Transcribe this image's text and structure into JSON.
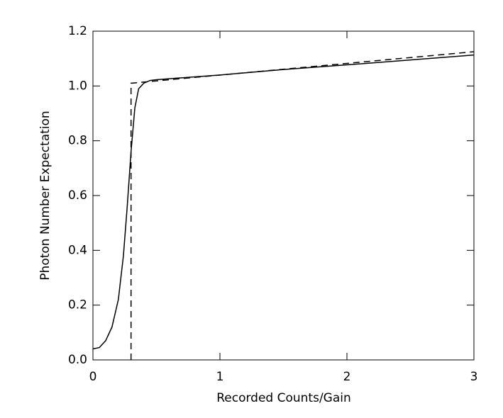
{
  "chart_data": {
    "type": "line",
    "xlabel": "Recorded Counts/Gain",
    "ylabel": "Photon Number Expectation",
    "xlim": [
      0,
      3
    ],
    "ylim": [
      0,
      1.2
    ],
    "xticks": [
      0,
      1,
      2,
      3
    ],
    "yticks": [
      {
        "value": 0,
        "label": "0.0"
      },
      0.2,
      0.4,
      0.6,
      0.8,
      {
        "value": 1,
        "label": "1.0"
      },
      1.2
    ],
    "series": [
      {
        "color": "#000000",
        "linestyle": "solid",
        "x": [
          0,
          0.05,
          0.1,
          0.15,
          0.2,
          0.24,
          0.27,
          0.3,
          0.33,
          0.36,
          0.4,
          0.45,
          0.5,
          1,
          1.5,
          2,
          2.5,
          3
        ],
        "values": [
          0.04,
          0.045,
          0.07,
          0.12,
          0.22,
          0.38,
          0.56,
          0.76,
          0.92,
          0.99,
          1.01,
          1.02,
          1.023,
          1.04,
          1.06,
          1.077,
          1.095,
          1.113
        ]
      },
      {
        "color": "#000000",
        "linestyle": "dashed",
        "x": [
          0.3,
          0.3,
          3
        ],
        "values": [
          0,
          1.01,
          1.125
        ]
      }
    ]
  }
}
